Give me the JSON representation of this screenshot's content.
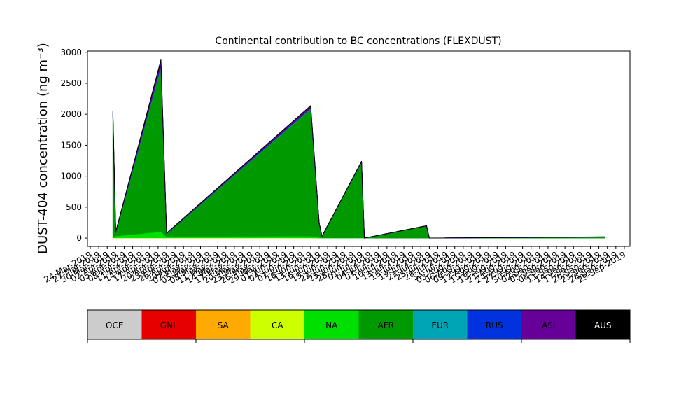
{
  "chart_data": {
    "type": "area",
    "title": "Continental contribution to BC concentrations (FLEXDUST)",
    "y_label": "DUST-404 concentration (ng m⁻³)",
    "stacked": true,
    "x": [
      "2019-04-01",
      "2019-04-02",
      "2019-04-18",
      "2019-04-20",
      "2019-06-10",
      "2019-06-13",
      "2019-06-14",
      "2019-06-28",
      "2019-06-29",
      "2019-07-21",
      "2019-07-22",
      "2019-09-22"
    ],
    "xlim": [
      "2019-03-23",
      "2019-10-01"
    ],
    "ylim": [
      -135,
      3020
    ],
    "yticks": [
      0,
      500,
      1000,
      1500,
      2000,
      2500,
      3000
    ],
    "xticks": [
      {
        "value": "2019-03-24",
        "label": "24-Mar-2019"
      },
      {
        "value": "2019-03-27",
        "label": "27-Mar-2019"
      },
      {
        "value": "2019-03-30",
        "label": "30-Mar-2019"
      },
      {
        "value": "2019-04-02",
        "label": "02-Apr-2019"
      },
      {
        "value": "2019-04-05",
        "label": "05-Apr-2019"
      },
      {
        "value": "2019-04-08",
        "label": "08-Apr-2019"
      },
      {
        "value": "2019-04-11",
        "label": "11-Apr-2019"
      },
      {
        "value": "2019-04-14",
        "label": "14-Apr-2019"
      },
      {
        "value": "2019-04-17",
        "label": "17-Apr-2019"
      },
      {
        "value": "2019-04-20",
        "label": "20-Apr-2019"
      },
      {
        "value": "2019-04-23",
        "label": "23-Apr-2019"
      },
      {
        "value": "2019-04-26",
        "label": "26-Apr-2019"
      },
      {
        "value": "2019-04-29",
        "label": "29-Apr-2019"
      },
      {
        "value": "2019-05-02",
        "label": "02-May-2019"
      },
      {
        "value": "2019-05-05",
        "label": "05-May-2019"
      },
      {
        "value": "2019-05-08",
        "label": "08-May-2019"
      },
      {
        "value": "2019-05-11",
        "label": "11-May-2019"
      },
      {
        "value": "2019-05-14",
        "label": "14-May-2019"
      },
      {
        "value": "2019-05-17",
        "label": "17-May-2019"
      },
      {
        "value": "2019-05-20",
        "label": "20-May-2019"
      },
      {
        "value": "2019-05-23",
        "label": "23-May-2019"
      },
      {
        "value": "2019-05-26",
        "label": "26-May-2019"
      },
      {
        "value": "2019-05-29",
        "label": "29-May-2019"
      },
      {
        "value": "2019-06-01",
        "label": "01-Jun-2019"
      },
      {
        "value": "2019-06-04",
        "label": "04-Jun-2019"
      },
      {
        "value": "2019-06-07",
        "label": "07-Jun-2019"
      },
      {
        "value": "2019-06-10",
        "label": "10-Jun-2019"
      },
      {
        "value": "2019-06-13",
        "label": "13-Jun-2019"
      },
      {
        "value": "2019-06-16",
        "label": "16-Jun-2019"
      },
      {
        "value": "2019-06-19",
        "label": "19-Jun-2019"
      },
      {
        "value": "2019-06-22",
        "label": "22-Jun-2019"
      },
      {
        "value": "2019-06-25",
        "label": "25-Jun-2019"
      },
      {
        "value": "2019-06-28",
        "label": "28-Jun-2019"
      },
      {
        "value": "2019-07-01",
        "label": "01-Jul-2019"
      },
      {
        "value": "2019-07-04",
        "label": "04-Jul-2019"
      },
      {
        "value": "2019-07-07",
        "label": "07-Jul-2019"
      },
      {
        "value": "2019-07-10",
        "label": "10-Jul-2019"
      },
      {
        "value": "2019-07-13",
        "label": "13-Jul-2019"
      },
      {
        "value": "2019-07-16",
        "label": "16-Jul-2019"
      },
      {
        "value": "2019-07-19",
        "label": "19-Jul-2019"
      },
      {
        "value": "2019-07-22",
        "label": "22-Jul-2019"
      },
      {
        "value": "2019-07-25",
        "label": "25-Jul-2019"
      },
      {
        "value": "2019-07-28",
        "label": "28-Jul-2019"
      },
      {
        "value": "2019-07-31",
        "label": "31-Jul-2019"
      },
      {
        "value": "2019-08-03",
        "label": "03-Aug-2019"
      },
      {
        "value": "2019-08-06",
        "label": "06-Aug-2019"
      },
      {
        "value": "2019-08-09",
        "label": "09-Aug-2019"
      },
      {
        "value": "2019-08-12",
        "label": "12-Aug-2019"
      },
      {
        "value": "2019-08-15",
        "label": "15-Aug-2019"
      },
      {
        "value": "2019-08-18",
        "label": "18-Aug-2019"
      },
      {
        "value": "2019-08-21",
        "label": "21-Aug-2019"
      },
      {
        "value": "2019-08-24",
        "label": "24-Aug-2019"
      },
      {
        "value": "2019-08-27",
        "label": "27-Aug-2019"
      },
      {
        "value": "2019-08-30",
        "label": "30-Aug-2019"
      },
      {
        "value": "2019-09-02",
        "label": "02-Sep-2019"
      },
      {
        "value": "2019-09-05",
        "label": "05-Sep-2019"
      },
      {
        "value": "2019-09-08",
        "label": "08-Sep-2019"
      },
      {
        "value": "2019-09-11",
        "label": "11-Sep-2019"
      },
      {
        "value": "2019-09-14",
        "label": "14-Sep-2019"
      },
      {
        "value": "2019-09-17",
        "label": "17-Sep-2019"
      },
      {
        "value": "2019-09-20",
        "label": "20-Sep-2019"
      },
      {
        "value": "2019-09-23",
        "label": "23-Sep-2019"
      },
      {
        "value": "2019-09-26",
        "label": "26-Sep-2019"
      },
      {
        "value": "2019-09-29",
        "label": "29-Sep-2019"
      }
    ],
    "series": [
      {
        "name": "OCE",
        "color": "#cccccc",
        "values": [
          0,
          0,
          0,
          0,
          0,
          0,
          0,
          0,
          0,
          0,
          0,
          0
        ]
      },
      {
        "name": "GNL",
        "color": "#e60000",
        "values": [
          0,
          0,
          0,
          0,
          0,
          0,
          0,
          0,
          0,
          0,
          0,
          0
        ]
      },
      {
        "name": "SA",
        "color": "#ffaa00",
        "values": [
          0,
          0,
          0,
          0,
          0,
          0,
          0,
          0,
          0,
          0,
          0,
          0
        ]
      },
      {
        "name": "CA",
        "color": "#ccff00",
        "values": [
          5,
          5,
          5,
          5,
          5,
          2,
          1,
          1,
          0,
          0,
          0,
          0
        ]
      },
      {
        "name": "NA",
        "color": "#00e000",
        "values": [
          15,
          30,
          100,
          20,
          30,
          10,
          5,
          5,
          0,
          2,
          0,
          2
        ]
      },
      {
        "name": "AFR",
        "color": "#009900",
        "values": [
          1960,
          55,
          2650,
          45,
          2050,
          220,
          22,
          1220,
          0,
          195,
          0,
          15
        ]
      },
      {
        "name": "EUR",
        "color": "#00a5b5",
        "values": [
          10,
          2,
          20,
          2,
          10,
          3,
          0,
          3,
          0,
          0,
          0,
          0
        ]
      },
      {
        "name": "RUS",
        "color": "#0033dd",
        "values": [
          10,
          2,
          20,
          2,
          10,
          3,
          0,
          3,
          0,
          0,
          0,
          0
        ]
      },
      {
        "name": "ASI",
        "color": "#660099",
        "values": [
          40,
          5,
          70,
          5,
          30,
          10,
          1,
          6,
          0,
          2,
          0,
          2
        ]
      },
      {
        "name": "AUS",
        "color": "#000000",
        "values": [
          10,
          1,
          15,
          1,
          5,
          2,
          1,
          2,
          0,
          1,
          0,
          1
        ]
      }
    ]
  }
}
